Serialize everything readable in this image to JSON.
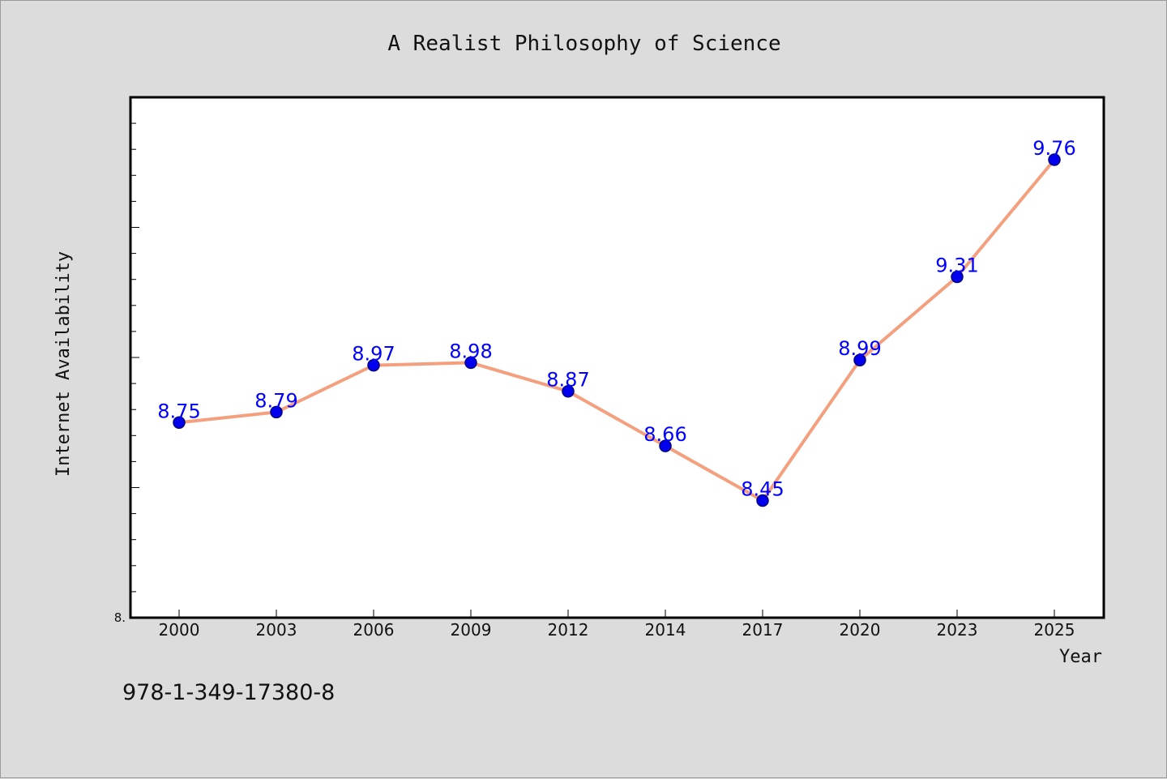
{
  "footnote": "978-1-349-17380-8",
  "colors": {
    "background": "#dcdcdc",
    "plot_background": "#ffffff",
    "line": "#f4a07f",
    "marker_fill": "#0000ee",
    "marker_edge": "#000080",
    "data_label": "#0000ff"
  },
  "chart_data": {
    "type": "line",
    "title": "A Realist Philosophy of Science",
    "xlabel": "Year",
    "ylabel": "Internet Availability",
    "categories": [
      "2000",
      "2003",
      "2006",
      "2009",
      "2012",
      "2014",
      "2017",
      "2020",
      "2023",
      "2025"
    ],
    "series": [
      {
        "values": [
          8.75,
          8.79,
          8.97,
          8.98,
          8.87,
          8.66,
          8.45,
          8.99,
          9.31,
          9.76
        ]
      }
    ],
    "data_labels": [
      "8.75",
      "8.79",
      "8.97",
      "8.98",
      "8.87",
      "8.66",
      "8.45",
      "8.99",
      "9.31",
      "9.76"
    ],
    "ylim": [
      8.0,
      10.0
    ],
    "y_tick_labels": [
      {
        "value": 8.0,
        "label": "8."
      }
    ],
    "y_minor_tick_step": 0.1,
    "grid": false,
    "legend": "none"
  }
}
